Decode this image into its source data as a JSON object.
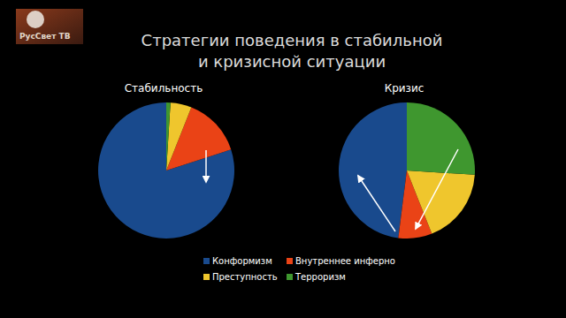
{
  "title": "Стратегии поведения в стабильной\nи кризисной ситуации",
  "logo": "РусСвет ТВ",
  "chart_data": [
    {
      "type": "pie",
      "title": "Стабильность",
      "categories": [
        "Конформизм",
        "Внутреннее инферно",
        "Преступность",
        "Терроризм"
      ],
      "values": [
        80,
        14,
        5,
        1
      ],
      "colors": [
        "#194a8d",
        "#ea4316",
        "#efc62d",
        "#3f972f"
      ],
      "legend": "bottom"
    },
    {
      "type": "pie",
      "title": "Кризис",
      "categories": [
        "Конформизм",
        "Внутреннее инферно",
        "Преступность",
        "Терроризм"
      ],
      "values": [
        48,
        8,
        18,
        26
      ],
      "colors": [
        "#194a8d",
        "#ea4316",
        "#efc62d",
        "#3f972f"
      ]
    }
  ]
}
